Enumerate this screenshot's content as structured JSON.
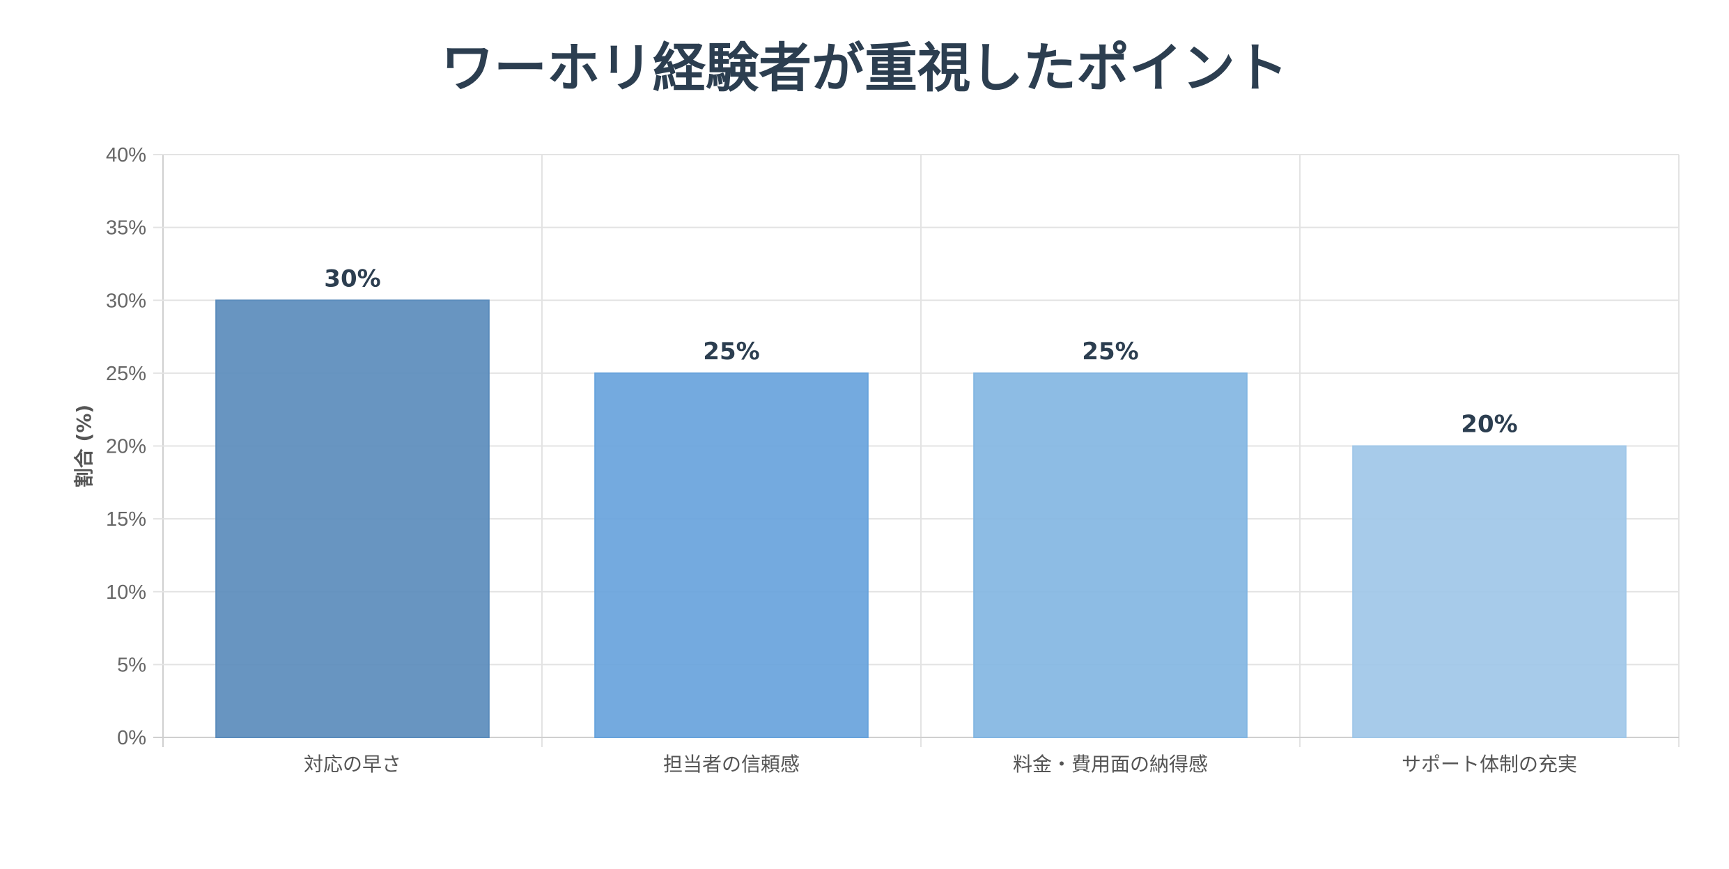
{
  "chart_data": {
    "type": "bar",
    "title": "ワーホリ経験者が重視したポイント",
    "categories": [
      "対応の早さ",
      "担当者の信頼感",
      "料金・費用面の納得感",
      "サポート体制の充実"
    ],
    "values": [
      30,
      25,
      25,
      20
    ],
    "value_labels": [
      "30%",
      "25%",
      "25%",
      "20%"
    ],
    "colors": [
      "#5b8cbc",
      "#68a3dc",
      "#83b6e2",
      "#a0c7e8"
    ],
    "ylabel": "割合 (%)",
    "xlabel": "",
    "ylim": [
      0,
      40
    ],
    "yticks": [
      0,
      5,
      10,
      15,
      20,
      25,
      30,
      35,
      40
    ],
    "ytick_labels": [
      "0%",
      "5%",
      "10%",
      "15%",
      "20%",
      "25%",
      "30%",
      "35%",
      "40%"
    ],
    "grid": true,
    "legend": "none"
  }
}
